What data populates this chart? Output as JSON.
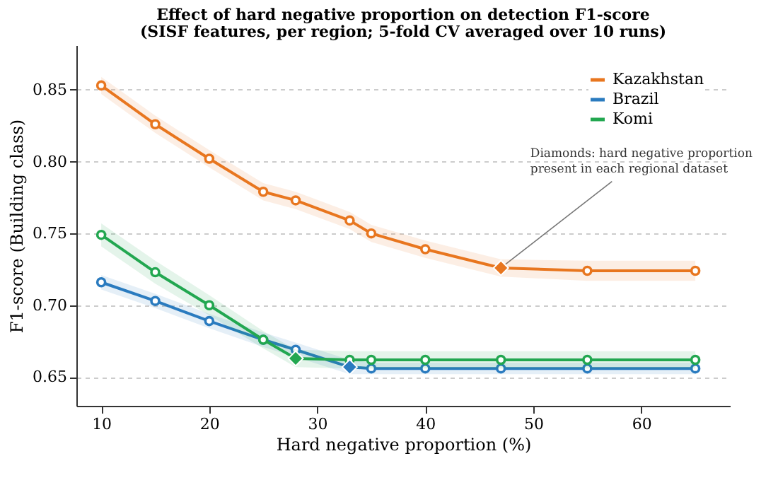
{
  "chart_data": {
    "type": "line",
    "title": "Effect of hard negative proportion on detection F1-score",
    "subtitle": "(SISF features, per region; 5-fold CV averaged over 10 runs)",
    "xlabel": "Hard negative proportion (%)",
    "ylabel": "F1-score (Building class)",
    "xlim": [
      7.7,
      68.2
    ],
    "ylim": [
      0.63,
      0.881
    ],
    "xticks": [
      10,
      20,
      30,
      40,
      50,
      60
    ],
    "yticks": [
      0.65,
      {
        "value": 0.7,
        "label": "0.70"
      },
      0.75,
      {
        "value": 0.8,
        "label": "0.80"
      },
      0.85
    ],
    "grid": "y",
    "legend": "top right",
    "marker": "circle",
    "line_style": "solid",
    "series": [
      {
        "name": "Kazakhstan",
        "color": "#e8761f",
        "x": [
          10,
          15,
          20,
          25,
          28,
          33,
          35,
          40,
          47,
          55,
          65
        ],
        "values": [
          0.853,
          0.826,
          0.802,
          0.779,
          0.773,
          0.759,
          0.75,
          0.739,
          0.726,
          0.724,
          0.724
        ],
        "lower": [
          0.847,
          0.82,
          0.796,
          0.773,
          0.767,
          0.753,
          0.744,
          0.733,
          0.72,
          0.717,
          0.717
        ],
        "upper": [
          0.859,
          0.832,
          0.808,
          0.785,
          0.779,
          0.765,
          0.756,
          0.745,
          0.732,
          0.731,
          0.731
        ]
      },
      {
        "name": "Brazil",
        "color": "#2a7bbf",
        "x": [
          10,
          15,
          20,
          25,
          28,
          33,
          35,
          40,
          47,
          55,
          65
        ],
        "values": [
          0.716,
          0.703,
          0.689,
          0.676,
          0.669,
          0.657,
          0.656,
          0.656,
          0.656,
          0.656,
          0.656
        ],
        "lower": [
          0.711,
          0.698,
          0.684,
          0.671,
          0.664,
          0.652,
          0.652,
          0.652,
          0.652,
          0.652,
          0.652
        ],
        "upper": [
          0.721,
          0.708,
          0.694,
          0.681,
          0.674,
          0.662,
          0.66,
          0.66,
          0.66,
          0.66,
          0.66
        ]
      },
      {
        "name": "Komi",
        "color": "#22a750",
        "x": [
          10,
          15,
          20,
          25,
          28,
          33,
          35,
          40,
          47,
          55,
          65
        ],
        "values": [
          0.749,
          0.723,
          0.7,
          0.676,
          0.663,
          0.662,
          0.662,
          0.662,
          0.662,
          0.662,
          0.662
        ],
        "lower": [
          0.741,
          0.715,
          0.693,
          0.67,
          0.657,
          0.656,
          0.656,
          0.656,
          0.656,
          0.656,
          0.656
        ],
        "upper": [
          0.757,
          0.731,
          0.707,
          0.682,
          0.669,
          0.668,
          0.668,
          0.668,
          0.668,
          0.668,
          0.668
        ]
      },
      {
        "type": "scatter",
        "marker": "diamond",
        "color": "#e8761f",
        "x": [
          47
        ],
        "values": [
          0.726
        ]
      },
      {
        "type": "scatter",
        "marker": "diamond",
        "color": "#2a7bbf",
        "x": [
          33
        ],
        "values": [
          0.657
        ]
      },
      {
        "type": "scatter",
        "marker": "diamond",
        "color": "#22a750",
        "x": [
          28
        ],
        "values": [
          0.663
        ]
      }
    ],
    "annotations": [
      {
        "text": "Diamonds: hard negative proportion\npresent in each regional dataset",
        "x": 47,
        "y": 0.726
      }
    ]
  }
}
